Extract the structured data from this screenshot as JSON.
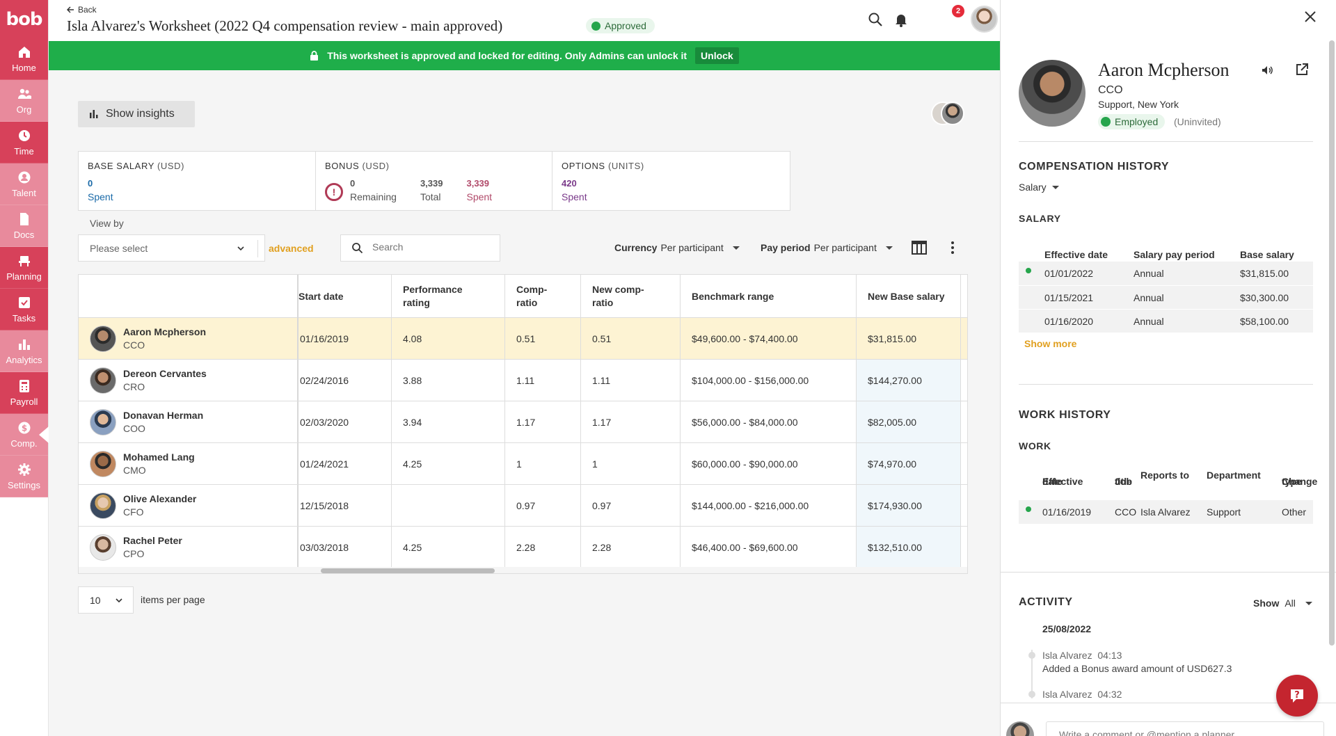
{
  "app": {
    "logo": "bob"
  },
  "sidebar": {
    "items": [
      {
        "label": "Home",
        "color": "#d7415a",
        "icon": "home-icon"
      },
      {
        "label": "Org",
        "color": "#e88a9c",
        "icon": "people-icon"
      },
      {
        "label": "Time",
        "color": "#d7415a",
        "icon": "clock-icon"
      },
      {
        "label": "Talent",
        "color": "#e88a9c",
        "icon": "person-icon"
      },
      {
        "label": "Docs",
        "color": "#e88a9c",
        "icon": "document-icon"
      },
      {
        "label": "Planning",
        "color": "#d7415a",
        "icon": "chair-icon"
      },
      {
        "label": "Tasks",
        "color": "#d7415a",
        "icon": "checkbox-icon"
      },
      {
        "label": "Analytics",
        "color": "#e88a9c",
        "icon": "bar-chart-icon"
      },
      {
        "label": "Payroll",
        "color": "#d7415a",
        "icon": "calculator-icon"
      },
      {
        "label": "Comp.",
        "color": "#e88a9c",
        "icon": "dollar-icon"
      },
      {
        "label": "Settings",
        "color": "#e88a9c",
        "icon": "gear-icon"
      }
    ]
  },
  "header": {
    "back_label": "Back",
    "title": "Isla Alvarez's Worksheet (2022 Q4 compensation review - main approved)",
    "status": "Approved",
    "notification_count": "2"
  },
  "banner": {
    "message": "This worksheet is approved and locked for editing. Only Admins can unlock it",
    "unlock_label": "Unlock"
  },
  "main": {
    "insights_label": "Show insights",
    "summary": {
      "base_salary": {
        "heading": "BASE SALARY",
        "unit": "(USD)",
        "spent_value": "0",
        "spent_label": "Spent"
      },
      "bonus": {
        "heading": "BONUS",
        "unit": "(USD)",
        "remaining_value": "0",
        "remaining_label": "Remaining",
        "total_value": "3,339",
        "total_label": "Total",
        "spent_value": "3,339",
        "spent_label": "Spent"
      },
      "options": {
        "heading": "OPTIONS",
        "unit": "(UNITS)",
        "spent_value": "420",
        "spent_label": "Spent"
      }
    },
    "view_by_label": "View by",
    "view_by_placeholder": "Please select",
    "advanced_label": "advanced",
    "search_placeholder": "Search",
    "currency": {
      "label": "Currency",
      "value": "Per participant"
    },
    "pay_period": {
      "label": "Pay period",
      "value": "Per participant"
    },
    "table": {
      "columns": {
        "start_date": "Start date",
        "perf_1": "Performance",
        "perf_2": "rating",
        "comp_1": "Comp-",
        "comp_2": "ratio",
        "new_comp_1": "New comp-",
        "new_comp_2": "ratio",
        "benchmark": "Benchmark range",
        "new_base": "New Base salary"
      },
      "rows": [
        {
          "name": "Aaron Mcpherson",
          "title": "CCO",
          "start": "01/16/2019",
          "perf": "4.08",
          "comp": "0.51",
          "new_comp": "0.51",
          "benchmark": "$49,600.00 - $74,400.00",
          "new_base": "$31,815.00"
        },
        {
          "name": "Dereon Cervantes",
          "title": "CRO",
          "start": "02/24/2016",
          "perf": "3.88",
          "comp": "1.11",
          "new_comp": "1.11",
          "benchmark": "$104,000.00 - $156,000.00",
          "new_base": "$144,270.00"
        },
        {
          "name": "Donavan Herman",
          "title": "COO",
          "start": "02/03/2020",
          "perf": "3.94",
          "comp": "1.17",
          "new_comp": "1.17",
          "benchmark": "$56,000.00 - $84,000.00",
          "new_base": "$82,005.00"
        },
        {
          "name": "Mohamed Lang",
          "title": "CMO",
          "start": "01/24/2021",
          "perf": "4.25",
          "comp": "1",
          "new_comp": "1",
          "benchmark": "$60,000.00 - $90,000.00",
          "new_base": "$74,970.00"
        },
        {
          "name": "Olive Alexander",
          "title": "CFO",
          "start": "12/15/2018",
          "perf": "",
          "comp": "0.97",
          "new_comp": "0.97",
          "benchmark": "$144,000.00 - $216,000.00",
          "new_base": "$174,930.00"
        },
        {
          "name": "Rachel Peter",
          "title": "CPO",
          "start": "03/03/2018",
          "perf": "4.25",
          "comp": "2.28",
          "new_comp": "2.28",
          "benchmark": "$46,400.00 - $69,600.00",
          "new_base": "$132,510.00"
        }
      ]
    },
    "pager_value": "10",
    "items_per_page_label": "items per page"
  },
  "panel": {
    "name": "Aaron Mcpherson",
    "role": "CCO",
    "location": "Support, New York",
    "status": "Employed",
    "invite_status": "(Uninvited)",
    "comp_history_heading": "COMPENSATION HISTORY",
    "comp_filter": "Salary",
    "salary_heading": "SALARY",
    "salary_columns": {
      "effective": "Effective date",
      "period": "Salary pay period",
      "base": "Base salary"
    },
    "salary_rows": [
      {
        "effective": "01/01/2022",
        "period": "Annual",
        "base": "$31,815.00"
      },
      {
        "effective": "01/15/2021",
        "period": "Annual",
        "base": "$30,300.00"
      },
      {
        "effective": "01/16/2020",
        "period": "Annual",
        "base": "$58,100.00"
      }
    ],
    "show_more": "Show more",
    "work_history_heading": "WORK HISTORY",
    "work_heading": "WORK",
    "work_columns": {
      "effective_1": "Effective",
      "effective_2": "date",
      "job_1": "Job",
      "job_2": "title",
      "reports": "Reports to",
      "department": "Department",
      "change_1": "Change",
      "change_2": "type"
    },
    "work_rows": [
      {
        "effective": "01/16/2019",
        "job": "CCO",
        "reports": "Isla Alvarez",
        "department": "Support",
        "change": "Other"
      }
    ],
    "activity_heading": "ACTIVITY",
    "activity_filter_label": "Show",
    "activity_filter_value": "All",
    "activity_date": "25/08/2022",
    "activities": [
      {
        "author": "Isla Alvarez",
        "time": "04:13",
        "text": "Added a Bonus award amount of USD627.3"
      },
      {
        "author": "Isla Alvarez",
        "time": "04:32",
        "text": ""
      }
    ],
    "comment_placeholder": "Write a comment or @mention a planner"
  }
}
